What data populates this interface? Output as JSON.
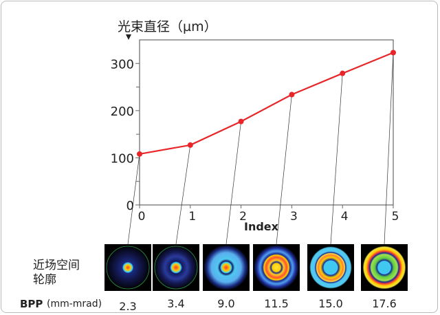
{
  "chart_data": {
    "type": "line",
    "ylabel": "光束直径（µm）",
    "xlabel": "Index",
    "x": [
      0,
      1,
      2,
      3,
      4,
      5
    ],
    "values": [
      108,
      127,
      177,
      234,
      279,
      323
    ],
    "xlim": [
      0,
      5
    ],
    "ylim": [
      0,
      350
    ],
    "yticks": [
      "0",
      "100",
      "200",
      "300"
    ],
    "xticks": [
      "0",
      "1",
      "2",
      "3",
      "4",
      "5"
    ],
    "grid": false,
    "line_color": "#e8262a",
    "near_field_label_line1": "近场空间",
    "near_field_label_line2": "轮廓",
    "bpp_label": "BPP",
    "bpp_unit": "(mm-mrad)",
    "bpp_values": [
      "2.3",
      "3.4",
      "9.0",
      "11.5",
      "15.0",
      "17.6"
    ]
  }
}
